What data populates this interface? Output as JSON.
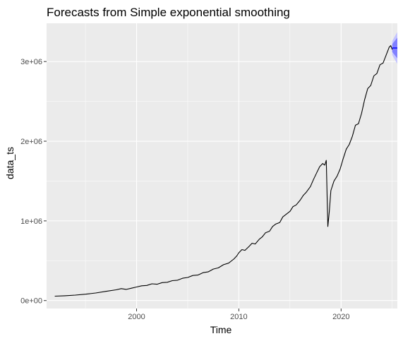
{
  "chart_data": {
    "type": "line",
    "title": "Forecasts from Simple exponential smoothing",
    "xlabel": "Time",
    "ylabel": "data_ts",
    "xlim": [
      1991.2,
      2025.5
    ],
    "ylim": [
      -100000,
      3480000
    ],
    "x_ticks": [
      {
        "value": 2000,
        "label": "2000"
      },
      {
        "value": 2010,
        "label": "2010"
      },
      {
        "value": 2020,
        "label": "2020"
      }
    ],
    "y_ticks": [
      {
        "value": 0,
        "label": "0e+00"
      },
      {
        "value": 1000000,
        "label": "1e+06"
      },
      {
        "value": 2000000,
        "label": "2e+06"
      },
      {
        "value": 3000000,
        "label": "3e+06"
      }
    ],
    "grid": true,
    "series": [
      {
        "color": "#000000",
        "points": [
          [
            1992.0,
            55000
          ],
          [
            1993.0,
            60000
          ],
          [
            1994.0,
            68000
          ],
          [
            1995.0,
            80000
          ],
          [
            1996.0,
            95000
          ],
          [
            1997.0,
            115000
          ],
          [
            1998.0,
            135000
          ],
          [
            1998.5,
            150000
          ],
          [
            1999.0,
            140000
          ],
          [
            1999.5,
            155000
          ],
          [
            2000.0,
            170000
          ],
          [
            2000.5,
            185000
          ],
          [
            2001.0,
            190000
          ],
          [
            2001.5,
            210000
          ],
          [
            2002.0,
            205000
          ],
          [
            2002.5,
            225000
          ],
          [
            2003.0,
            230000
          ],
          [
            2003.5,
            250000
          ],
          [
            2004.0,
            255000
          ],
          [
            2004.5,
            280000
          ],
          [
            2005.0,
            290000
          ],
          [
            2005.5,
            315000
          ],
          [
            2006.0,
            320000
          ],
          [
            2006.5,
            350000
          ],
          [
            2007.0,
            360000
          ],
          [
            2007.5,
            395000
          ],
          [
            2008.0,
            410000
          ],
          [
            2008.5,
            450000
          ],
          [
            2009.0,
            470000
          ],
          [
            2009.5,
            520000
          ],
          [
            2009.8,
            560000
          ],
          [
            2010.0,
            600000
          ],
          [
            2010.3,
            640000
          ],
          [
            2010.6,
            630000
          ],
          [
            2011.0,
            680000
          ],
          [
            2011.3,
            720000
          ],
          [
            2011.6,
            710000
          ],
          [
            2012.0,
            770000
          ],
          [
            2012.3,
            800000
          ],
          [
            2012.6,
            850000
          ],
          [
            2013.0,
            870000
          ],
          [
            2013.3,
            930000
          ],
          [
            2013.6,
            960000
          ],
          [
            2014.0,
            980000
          ],
          [
            2014.3,
            1050000
          ],
          [
            2014.6,
            1080000
          ],
          [
            2015.0,
            1120000
          ],
          [
            2015.3,
            1180000
          ],
          [
            2015.6,
            1200000
          ],
          [
            2016.0,
            1260000
          ],
          [
            2016.3,
            1320000
          ],
          [
            2016.6,
            1360000
          ],
          [
            2017.0,
            1430000
          ],
          [
            2017.3,
            1520000
          ],
          [
            2017.6,
            1600000
          ],
          [
            2017.9,
            1680000
          ],
          [
            2018.2,
            1720000
          ],
          [
            2018.4,
            1700000
          ],
          [
            2018.55,
            1760000
          ],
          [
            2018.7,
            930000
          ],
          [
            2018.85,
            1120000
          ],
          [
            2019.0,
            1380000
          ],
          [
            2019.3,
            1500000
          ],
          [
            2019.6,
            1560000
          ],
          [
            2019.9,
            1650000
          ],
          [
            2020.2,
            1780000
          ],
          [
            2020.5,
            1900000
          ],
          [
            2020.8,
            1960000
          ],
          [
            2021.1,
            2060000
          ],
          [
            2021.4,
            2200000
          ],
          [
            2021.7,
            2220000
          ],
          [
            2022.0,
            2350000
          ],
          [
            2022.3,
            2520000
          ],
          [
            2022.6,
            2660000
          ],
          [
            2022.9,
            2700000
          ],
          [
            2023.2,
            2820000
          ],
          [
            2023.5,
            2850000
          ],
          [
            2023.8,
            2960000
          ],
          [
            2024.1,
            2980000
          ],
          [
            2024.4,
            3080000
          ],
          [
            2024.7,
            3180000
          ],
          [
            2024.85,
            3200000
          ],
          [
            2025.0,
            3150000
          ]
        ]
      }
    ],
    "forecast": {
      "x": [
        2025.0,
        2025.5
      ],
      "mean": 3170000,
      "lower95": [
        3080000,
        2970000
      ],
      "upper95": [
        3260000,
        3370000
      ],
      "lower80": [
        3120000,
        3040000
      ],
      "upper80": [
        3220000,
        3300000
      ],
      "mean_color": "#0000ff",
      "band80_color": "#8080ff",
      "band95_color": "#c4c4ff"
    },
    "panel_bg": "#ebebeb",
    "grid_major_color": "#ffffff"
  }
}
